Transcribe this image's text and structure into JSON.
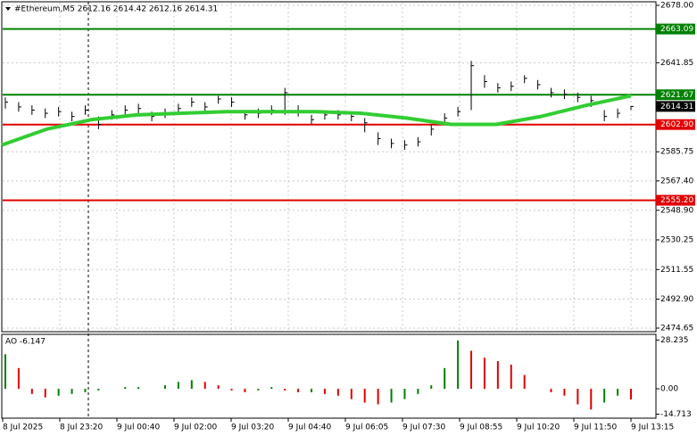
{
  "chart_data": {
    "type": "ohlc",
    "title": "#Ethereum,M5  2612.16 2614.42 2612.16 2614.31",
    "time_labels": [
      "8 Jul 2025",
      "8 Jul 23:20",
      "9 Jul 00:40",
      "9 Jul 02:00",
      "9 Jul 03:20",
      "9 Jul 04:40",
      "9 Jul 06:05",
      "9 Jul 07:30",
      "9 Jul 08:55",
      "9 Jul 10:20",
      "9 Jul 11:50",
      "9 Jul 13:15"
    ],
    "close": [
      2617,
      2614,
      2612,
      2610,
      2611,
      2608,
      2612,
      2603,
      2609,
      2612,
      2613,
      2608,
      2610,
      2613,
      2617,
      2614,
      2619,
      2617,
      2609,
      2610,
      2612,
      2623,
      2611,
      2606,
      2609,
      2609,
      2608,
      2604,
      2594,
      2591,
      2590,
      2592,
      2600,
      2607,
      2611,
      2640,
      2630,
      2626,
      2627,
      2632,
      2628,
      2623,
      2622,
      2620,
      2618,
      2608,
      2610,
      2614.31
    ],
    "high": [
      2620,
      2617,
      2615,
      2613,
      2614,
      2611,
      2615,
      2608,
      2612,
      2615,
      2616,
      2611,
      2613,
      2616,
      2620,
      2617,
      2621,
      2620,
      2612,
      2613,
      2615,
      2626,
      2615,
      2609,
      2612,
      2612,
      2611,
      2607,
      2598,
      2594,
      2593,
      2595,
      2603,
      2610,
      2614,
      2643,
      2634,
      2629,
      2630,
      2634,
      2631,
      2626,
      2625,
      2623,
      2621,
      2612,
      2613,
      2614.42
    ],
    "low": [
      2613,
      2611,
      2609,
      2607,
      2608,
      2605,
      2609,
      2600,
      2606,
      2609,
      2610,
      2605,
      2607,
      2610,
      2614,
      2611,
      2616,
      2614,
      2606,
      2607,
      2609,
      2609,
      2608,
      2603,
      2606,
      2606,
      2605,
      2598,
      2590,
      2588,
      2587,
      2589,
      2596,
      2604,
      2608,
      2612,
      2626,
      2623,
      2624,
      2629,
      2625,
      2620,
      2619,
      2617,
      2614,
      2605,
      2607,
      2612.16
    ],
    "bar_color": "#000000",
    "ma": [
      2590,
      2600,
      2606,
      2609,
      2610,
      2611,
      2611,
      2611,
      2610,
      2607,
      2603,
      2603,
      2608,
      2615,
      2621
    ],
    "ma_color": "#32cd32",
    "levels": [
      {
        "value": 2663.09,
        "color": "#008000"
      },
      {
        "value": 2621.67,
        "color": "#008000"
      },
      {
        "value": 2602.9,
        "label": "2602.90",
        "color": "#e00000"
      },
      {
        "value": 2555.2,
        "label": "2555.20",
        "color": "#e00000"
      }
    ],
    "last_price": 2614.31,
    "ylim": [
      2474.65,
      2678
    ],
    "yticks": [
      {
        "value": 2678,
        "label": "2678.00"
      },
      2641.85,
      2585.75,
      {
        "value": 2567.4,
        "label": "2567.40"
      },
      {
        "value": 2548.9,
        "label": "2548.90"
      },
      2530.25,
      2511.55,
      {
        "value": 2492.9,
        "label": "2492.90"
      },
      2474.65
    ],
    "grid": true,
    "ao_title": "AO -6.147",
    "ao": [
      20,
      12,
      -3,
      -5,
      -4,
      -3,
      -2,
      -1,
      0,
      1,
      1,
      0,
      2,
      4,
      5,
      4,
      2,
      -1,
      -2,
      -1,
      1,
      -1,
      -2,
      -2,
      -3,
      -4,
      -6,
      -8,
      -9,
      -8,
      -6,
      -3,
      2,
      12,
      28,
      22,
      18,
      16,
      14,
      8,
      0,
      -2,
      -4,
      -9,
      -12,
      -8,
      -4,
      -6.147
    ],
    "ao_up_color": "#008000",
    "ao_down_color": "#e00000",
    "y2lim": [
      -16.5,
      31
    ],
    "y2ticks": [
      28.235,
      {
        "value": 0,
        "label": "0.00"
      },
      -14.713
    ]
  }
}
